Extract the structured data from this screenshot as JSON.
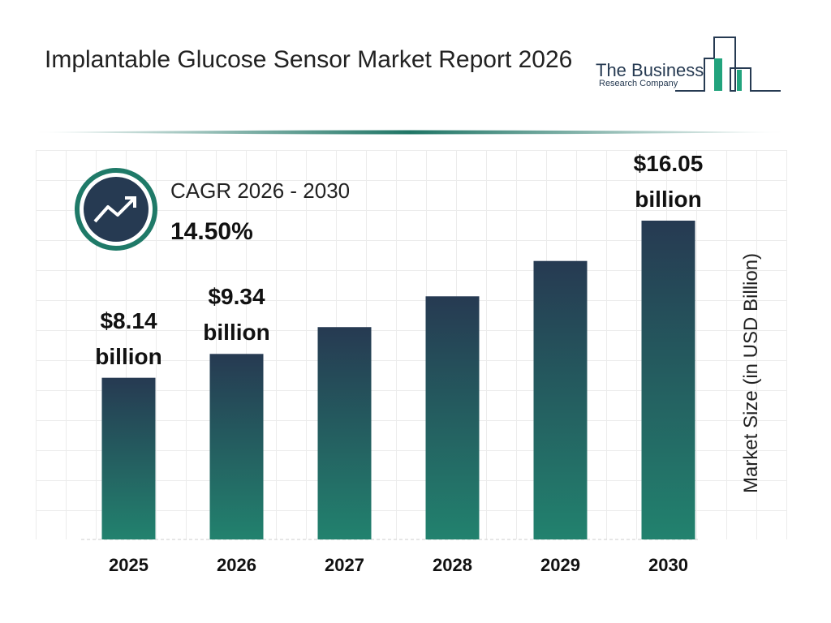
{
  "title": "Implantable Glucose Sensor Market Report 2026",
  "logo": {
    "line1": "The Business",
    "line2": "Research Company"
  },
  "chart_data": {
    "type": "bar",
    "categories": [
      "2025",
      "2026",
      "2027",
      "2028",
      "2029",
      "2030"
    ],
    "values": [
      8.14,
      9.34,
      10.69,
      12.24,
      14.02,
      16.05
    ],
    "value_labels": [
      "$8.14 billion",
      "$9.34 billion",
      null,
      null,
      null,
      "$16.05 billion"
    ],
    "gradient": [
      "#263a52",
      "#22826e"
    ],
    "ylabel": "Market Size (in USD Billion)",
    "cagr_label": "CAGR 2026 - 2030",
    "cagr_value": "14.50%"
  }
}
